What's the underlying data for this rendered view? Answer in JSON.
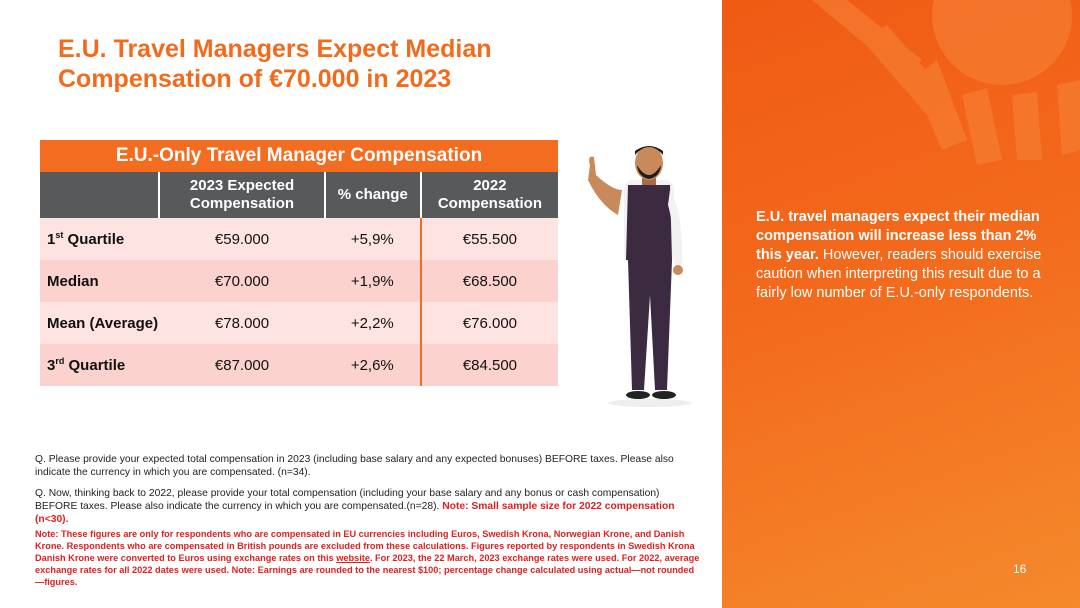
{
  "header": {
    "title": "E.U. Travel Managers Expect Median Compensation of €70.000 in 2023"
  },
  "table": {
    "title": "E.U.-Only Travel Manager Compensation",
    "columns": [
      "2023 Expected Compensation",
      "% change",
      "2022 Compensation"
    ],
    "rows": [
      {
        "label": "1",
        "sup": "st",
        "rest": "Quartile",
        "cells": [
          "€59.000",
          "+5,9%",
          "€55.500"
        ]
      },
      {
        "label": "Median",
        "cells": [
          "€70.000",
          "+1,9%",
          "€68.500"
        ]
      },
      {
        "label": "Mean (Average)",
        "cells": [
          "€78.000",
          "+2,2%",
          "€76.000"
        ]
      },
      {
        "label": "3",
        "sup": "rd",
        "rest": "Quartile",
        "cells": [
          "€87.000",
          "+2,6%",
          "€84.500"
        ]
      }
    ]
  },
  "sidebar": {
    "bold": "E.U. travel managers expect their median compensation will increase less than 2% this year.",
    "text": "However, readers should exercise caution when interpreting this result due to a fairly low number of E.U.-only respondents."
  },
  "notes": {
    "q1": "Q. Please provide your expected total compensation in 2023 (including base salary and any expected bonuses) BEFORE taxes. Please also indicate the currency in which you are compensated. (n=34).",
    "q2": "Q. Now, thinking back to 2022, please provide your total compensation (including your base salary and any bonus or cash compensation) BEFORE taxes. Please also indicate the currency in which you are compensated.(n=28).",
    "q2_note": "Note: Small sample size for 2022 compensation (n<30).",
    "note_before": "Note: These figures are only for respondents who are compensated in EU currencies including Euros, Swedish Krona, Norwegian Krone, and Danish Krone. Respondents who are compensated in British pounds are excluded from these calculations.   Figures reported by respondents in Swedish Krona Danish Krone were converted to Euros using exchange rates on this",
    "note_link": "website",
    "note_after": ". For 2023, the 22 March, 2023 exchange rates were used. For 2022, average exchange rates for all 2022 dates were used.   Note: Earnings are rounded to the nearest $100; percentage change calculated using actual—not rounded—figures."
  },
  "page_number": "16"
}
